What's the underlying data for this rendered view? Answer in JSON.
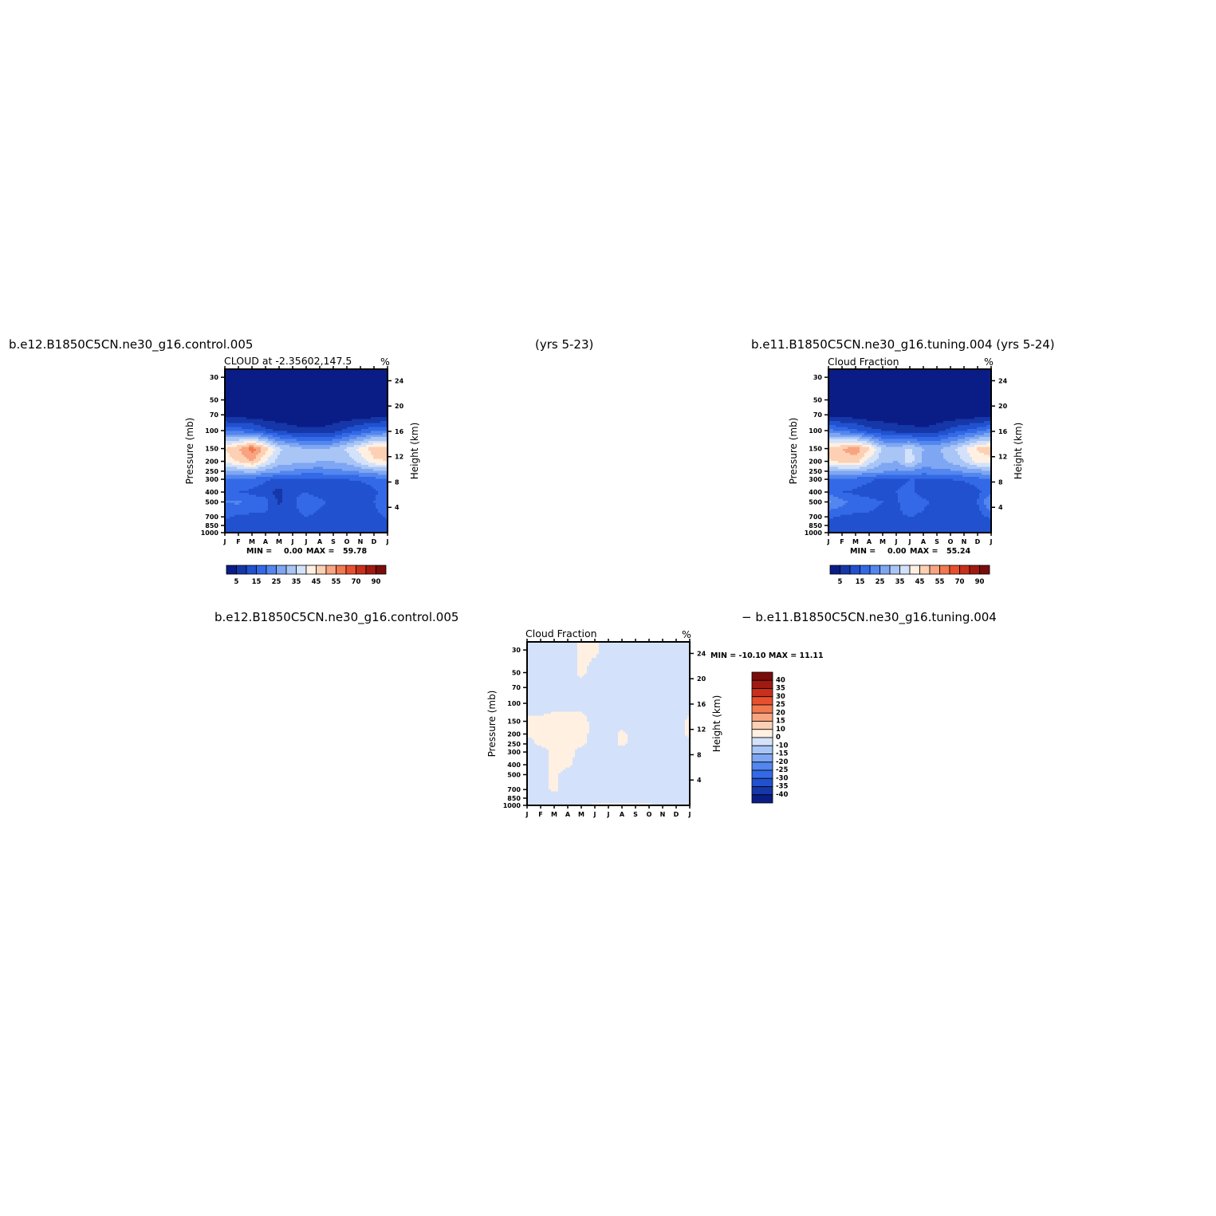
{
  "header": {
    "left_case": "b.e12.B1850C5CN.ne30_g16.control.005",
    "center_years": "(yrs 5-23)",
    "right_case": "b.e11.B1850C5CN.ne30_g16.tuning.004 (yrs 5-24)",
    "bottom_left_case": "b.e12.B1850C5CN.ne30_g16.control.005",
    "bottom_right_case": "− b.e11.B1850C5CN.ne30_g16.tuning.004"
  },
  "panels": {
    "control": {
      "title": "CLOUD at -2.35602,147.5",
      "units": "%",
      "min_label": "MIN =",
      "min_value": "0.00",
      "max_label": "MAX =",
      "max_value": "59.78"
    },
    "tuning": {
      "title": "Cloud Fraction",
      "units": "%",
      "min_label": "MIN =",
      "min_value": "0.00",
      "max_label": "MAX =",
      "max_value": "55.24"
    },
    "difference": {
      "title": "Cloud Fraction",
      "units": "%",
      "minmax_text": "MIN = -10.10 MAX =  11.11"
    }
  },
  "axes": {
    "ylabel_left": "Pressure (mb)",
    "ylabel_right": "Height (km)",
    "pressure_ticks": [
      "30",
      "50",
      "70",
      "100",
      "150",
      "200",
      "250",
      "300",
      "400",
      "500",
      "700",
      "850",
      "1000"
    ],
    "height_ticks": [
      "24",
      "20",
      "16",
      "12",
      "8",
      "4"
    ],
    "month_ticks": [
      "J",
      "F",
      "M",
      "A",
      "M",
      "J",
      "J",
      "A",
      "S",
      "O",
      "N",
      "D",
      "J"
    ]
  },
  "colorbar_main": {
    "labels": [
      "5",
      "15",
      "25",
      "35",
      "45",
      "55",
      "70",
      "90"
    ],
    "colors": [
      "#0a1d86",
      "#1637a8",
      "#2151cf",
      "#3369e6",
      "#5386ee",
      "#7ea6f2",
      "#a8c5f6",
      "#d3e2fa",
      "#fff0e2",
      "#fdd0b3",
      "#f8a481",
      "#f27850",
      "#e8502d",
      "#c8301b",
      "#a01a12",
      "#7a0d0b"
    ]
  },
  "colorbar_diff": {
    "labels": [
      "40",
      "35",
      "30",
      "25",
      "20",
      "15",
      "10",
      "0",
      "-10",
      "-15",
      "-20",
      "-25",
      "-30",
      "-35",
      "-40"
    ],
    "colors": [
      "#7a0d0b",
      "#a01a12",
      "#c8301b",
      "#e8502d",
      "#f27850",
      "#f8a481",
      "#fdd0b3",
      "#fff0e2",
      "#d3e2fa",
      "#a8c5f6",
      "#7ea6f2",
      "#5386ee",
      "#3369e6",
      "#2151cf",
      "#1637a8",
      "#0a1d86"
    ]
  },
  "chart_data": [
    {
      "type": "heatmap",
      "title": "CLOUD at -2.35602,147.5",
      "xlabel": "",
      "ylabel": "Pressure (mb)",
      "ylabel_right": "Height (km)",
      "x": [
        "J",
        "F",
        "M",
        "A",
        "M",
        "J",
        "J",
        "A",
        "S",
        "O",
        "N",
        "D",
        "J"
      ],
      "y": [
        30,
        50,
        70,
        100,
        150,
        200,
        250,
        300,
        400,
        500,
        700,
        850,
        1000
      ],
      "values": [
        [
          0,
          0,
          0,
          0,
          0,
          0,
          0,
          0,
          0,
          0,
          0,
          0,
          0
        ],
        [
          0,
          0,
          0,
          0,
          0,
          0,
          0,
          0,
          0,
          0,
          0,
          0,
          0
        ],
        [
          2,
          2,
          2,
          1,
          1,
          1,
          1,
          1,
          1,
          1,
          1,
          2,
          2
        ],
        [
          20,
          18,
          16,
          12,
          9,
          7,
          6,
          6,
          8,
          12,
          15,
          19,
          20
        ],
        [
          45,
          50,
          58,
          48,
          36,
          33,
          30,
          30,
          31,
          36,
          42,
          48,
          48
        ],
        [
          42,
          46,
          50,
          40,
          33,
          32,
          32,
          30,
          30,
          32,
          37,
          44,
          45
        ],
        [
          28,
          30,
          32,
          28,
          26,
          24,
          22,
          22,
          24,
          24,
          26,
          28,
          28
        ],
        [
          20,
          19,
          18,
          16,
          14,
          14,
          15,
          15,
          15,
          15,
          16,
          18,
          20
        ],
        [
          17,
          15,
          14,
          12,
          8,
          14,
          15,
          13,
          12,
          10,
          10,
          14,
          17
        ],
        [
          20,
          21,
          18,
          17,
          9,
          14,
          18,
          16,
          14,
          12,
          12,
          15,
          20
        ],
        [
          16,
          14,
          14,
          14,
          13,
          14,
          15,
          14,
          12,
          11,
          11,
          13,
          16
        ],
        [
          13,
          12,
          12,
          12,
          12,
          12,
          12,
          11,
          10,
          10,
          10,
          11,
          13
        ],
        [
          13,
          12,
          12,
          12,
          12,
          12,
          12,
          11,
          10,
          10,
          10,
          11,
          13
        ]
      ],
      "zlim": [
        0,
        100
      ],
      "min": 0.0,
      "max": 59.78
    },
    {
      "type": "heatmap",
      "title": "Cloud Fraction",
      "xlabel": "",
      "ylabel": "Pressure (mb)",
      "ylabel_right": "Height (km)",
      "x": [
        "J",
        "F",
        "M",
        "A",
        "M",
        "J",
        "J",
        "A",
        "S",
        "O",
        "N",
        "D",
        "J"
      ],
      "y": [
        30,
        50,
        70,
        100,
        150,
        200,
        250,
        300,
        400,
        500,
        700,
        850,
        1000
      ],
      "values": [
        [
          0,
          0,
          0,
          0,
          0,
          0,
          0,
          0,
          0,
          0,
          0,
          0,
          0
        ],
        [
          0,
          0,
          0,
          0,
          0,
          0,
          0,
          0,
          0,
          0,
          0,
          0,
          0
        ],
        [
          2,
          2,
          2,
          1,
          1,
          1,
          1,
          1,
          1,
          1,
          1,
          2,
          2
        ],
        [
          22,
          19,
          16,
          12,
          10,
          8,
          7,
          6,
          8,
          12,
          15,
          18,
          22
        ],
        [
          47,
          50,
          53,
          46,
          34,
          32,
          36,
          30,
          29,
          33,
          39,
          46,
          47
        ],
        [
          44,
          47,
          48,
          38,
          31,
          30,
          38,
          29,
          28,
          31,
          35,
          42,
          44
        ],
        [
          28,
          30,
          30,
          28,
          26,
          24,
          24,
          22,
          24,
          24,
          26,
          28,
          28
        ],
        [
          20,
          19,
          18,
          16,
          14,
          14,
          15,
          15,
          15,
          15,
          16,
          18,
          20
        ],
        [
          18,
          15,
          14,
          12,
          12,
          15,
          16,
          13,
          12,
          10,
          10,
          14,
          18
        ],
        [
          26,
          22,
          18,
          17,
          15,
          14,
          19,
          16,
          14,
          12,
          12,
          15,
          26
        ],
        [
          16,
          14,
          14,
          14,
          13,
          14,
          15,
          14,
          12,
          11,
          11,
          13,
          16
        ],
        [
          13,
          12,
          12,
          12,
          12,
          12,
          12,
          11,
          10,
          10,
          10,
          11,
          13
        ],
        [
          13,
          12,
          12,
          12,
          12,
          12,
          12,
          11,
          10,
          10,
          10,
          11,
          13
        ]
      ],
      "zlim": [
        0,
        100
      ],
      "min": 0.0,
      "max": 55.24
    },
    {
      "type": "heatmap",
      "title": "Cloud Fraction",
      "xlabel": "",
      "ylabel": "Pressure (mb)",
      "ylabel_right": "Height (km)",
      "x": [
        "J",
        "F",
        "M",
        "A",
        "M",
        "J",
        "J",
        "A",
        "S",
        "O",
        "N",
        "D",
        "J"
      ],
      "y": [
        30,
        50,
        70,
        100,
        150,
        200,
        250,
        300,
        400,
        500,
        700,
        850,
        1000
      ],
      "values": [
        [
          -2,
          -2,
          -2,
          -2,
          1,
          1,
          -2,
          -2,
          -2,
          -2,
          -2,
          -2,
          -2
        ],
        [
          -2,
          -2,
          -2,
          -2,
          1,
          -2,
          -2,
          -2,
          -2,
          -2,
          -2,
          -2,
          -2
        ],
        [
          -2,
          -2,
          -2,
          -2,
          -2,
          -2,
          -2,
          -2,
          -2,
          -2,
          -2,
          -2,
          -2
        ],
        [
          -2,
          -2,
          -2,
          -2,
          -2,
          -2,
          -2,
          -2,
          -2,
          -2,
          -2,
          -2,
          -2
        ],
        [
          1,
          1,
          2,
          2,
          2,
          -2,
          -2,
          -2,
          -2,
          -2,
          -2,
          -2,
          1
        ],
        [
          1,
          1,
          2,
          2,
          2,
          -2,
          -2,
          1,
          -2,
          -2,
          -2,
          -2,
          1
        ],
        [
          -2,
          1,
          2,
          3,
          1,
          -2,
          -2,
          1,
          -2,
          -2,
          -2,
          -2,
          -2
        ],
        [
          -2,
          -2,
          1,
          2,
          -2,
          -2,
          -2,
          -2,
          -2,
          -2,
          -2,
          -2,
          -2
        ],
        [
          -2,
          -2,
          1,
          1,
          -2,
          -2,
          -2,
          -2,
          -2,
          -2,
          -2,
          -2,
          -2
        ],
        [
          -2,
          -2,
          1,
          -2,
          -2,
          -2,
          -2,
          -2,
          -2,
          -2,
          -2,
          -2,
          -2
        ],
        [
          -2,
          -2,
          1,
          -2,
          -2,
          -2,
          -2,
          -2,
          -2,
          -2,
          -2,
          -2,
          -2
        ],
        [
          -2,
          -2,
          -2,
          -2,
          -2,
          -2,
          -2,
          -2,
          -2,
          -2,
          -2,
          -2,
          -2
        ],
        [
          -2,
          -2,
          -2,
          -2,
          -2,
          1,
          1,
          1,
          1,
          1,
          -2,
          -2,
          -2
        ]
      ],
      "zlim": [
        -40,
        40
      ],
      "min": -10.1,
      "max": 11.11
    }
  ]
}
